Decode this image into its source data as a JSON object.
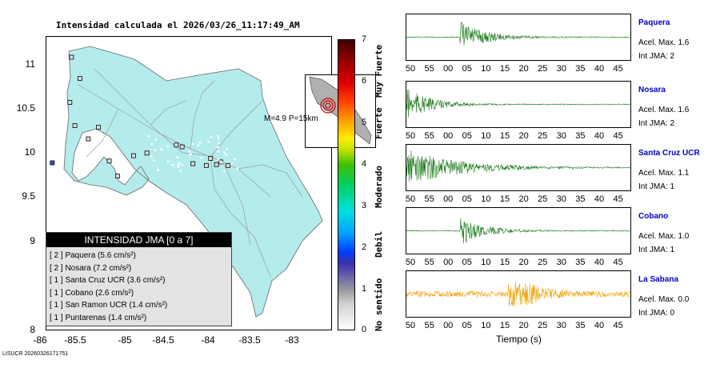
{
  "map": {
    "title": "Intensidad calculada el 2026/03/26_11:17:49_AM",
    "x_ticks": [
      "-86",
      "-85.5",
      "-85",
      "-84.5",
      "-84",
      "-83.5",
      "-83"
    ],
    "y_ticks": [
      "11",
      "10.5",
      "10",
      "9.5",
      "9",
      "8"
    ],
    "legend_title": "INTENSIDAD JMA [0 a 7]",
    "legend_rows": [
      "[ 2 ]  Paquera (5.6 cm/s²)",
      "[ 2 ]  Nosara (7.2 cm/s²)",
      "[ 1 ]  Santa Cruz UCR (3.6 cm/s²)",
      "[ 1 ]  Cobano (2.6 cm/s²)",
      "[ 1 ]  San Ramon UCR (1.4 cm/s²)",
      "[ 1 ]  Puntarenas (1.4 cm/s²)"
    ],
    "inset_caption": "M=4.9  P=15km",
    "land_color": "#b4ecec"
  },
  "colorbar": {
    "ticks": [
      "7",
      "6",
      "5",
      "4",
      "3",
      "2",
      "1",
      "0"
    ],
    "labels": [
      "Muy Fuerte",
      "Fuerte",
      "Moderado",
      "Debil",
      "No sentido"
    ]
  },
  "source_label": "LISUCR 20260326171751",
  "time_axis": {
    "label": "Tiempo (s)",
    "ticks": [
      "50",
      "55",
      "00",
      "05",
      "10",
      "15",
      "20",
      "25",
      "30",
      "35",
      "40",
      "45"
    ]
  },
  "stations": [
    {
      "name": "Paquera",
      "accel": "Acel. Max. 1.6",
      "intensity": "Int JMA: 2",
      "color": "#1a7a1a",
      "onset": 0.24,
      "peak": 0.8
    },
    {
      "name": "Nosara",
      "accel": "Acel. Max. 1.6",
      "intensity": "Int JMA: 2",
      "color": "#1a7a1a",
      "onset": 0.0,
      "peak": 0.8
    },
    {
      "name": "Santa Cruz UCR",
      "accel": "Acel. Max. 1.1",
      "intensity": "Int JMA: 1",
      "color": "#1a7a1a",
      "onset": -0.02,
      "peak": 0.95
    },
    {
      "name": "Cobano",
      "accel": "Acel. Max. 1.0",
      "intensity": "Int JMA: 1",
      "color": "#1a7a1a",
      "onset": 0.24,
      "peak": 0.7
    },
    {
      "name": "La Sabana",
      "accel": "Acel. Max. 0.0",
      "intensity": "Int JMA: 0",
      "color": "#f0a000",
      "onset": 0.45,
      "peak": 0.9
    }
  ],
  "chart_data": [
    {
      "type": "scatter",
      "title": "Intensidad calculada el 2026/03/26_11:17:49_AM",
      "xlabel": "",
      "ylabel": "",
      "xlim": [
        -86,
        -82.6
      ],
      "ylim": [
        8,
        11.3
      ],
      "series": [
        {
          "name": "Paquera",
          "intensity": 2,
          "pga_cm_s2": 5.6
        },
        {
          "name": "Nosara",
          "intensity": 2,
          "pga_cm_s2": 7.2
        },
        {
          "name": "Santa Cruz UCR",
          "intensity": 1,
          "pga_cm_s2": 3.6
        },
        {
          "name": "Cobano",
          "intensity": 1,
          "pga_cm_s2": 2.6
        },
        {
          "name": "San Ramon UCR",
          "intensity": 1,
          "pga_cm_s2": 1.4
        },
        {
          "name": "Puntarenas",
          "intensity": 1,
          "pga_cm_s2": 1.4
        }
      ],
      "station_points": [
        [
          -85.7,
          11.07
        ],
        [
          -85.6,
          10.83
        ],
        [
          -85.72,
          10.56
        ],
        [
          -85.66,
          10.3
        ],
        [
          -85.38,
          10.28
        ],
        [
          -85.5,
          10.15
        ],
        [
          -85.93,
          9.88
        ],
        [
          -85.25,
          9.9
        ],
        [
          -85.15,
          9.73
        ],
        [
          -84.96,
          9.96
        ],
        [
          -84.8,
          9.99
        ],
        [
          -84.45,
          10.08
        ],
        [
          -84.38,
          10.06
        ],
        [
          -84.25,
          9.87
        ],
        [
          -84.04,
          9.93
        ],
        [
          -84.09,
          9.85
        ],
        [
          -83.97,
          9.86
        ],
        [
          -83.92,
          9.89
        ],
        [
          -83.83,
          9.85
        ]
      ],
      "epicenter": [
        -85.0,
        9.7
      ],
      "grid": false
    },
    {
      "type": "line",
      "title": "",
      "xlabel": "Tiempo (s)",
      "x_tick_labels": [
        "50",
        "55",
        "00",
        "05",
        "10",
        "15",
        "20",
        "25",
        "30",
        "35",
        "40",
        "45"
      ],
      "series": [
        {
          "name": "Paquera",
          "peak": 1.6
        },
        {
          "name": "Nosara",
          "peak": 1.6
        },
        {
          "name": "Santa Cruz UCR",
          "peak": 1.1
        },
        {
          "name": "Cobano",
          "peak": 1.0
        },
        {
          "name": "La Sabana",
          "peak": 0.0
        }
      ]
    }
  ]
}
